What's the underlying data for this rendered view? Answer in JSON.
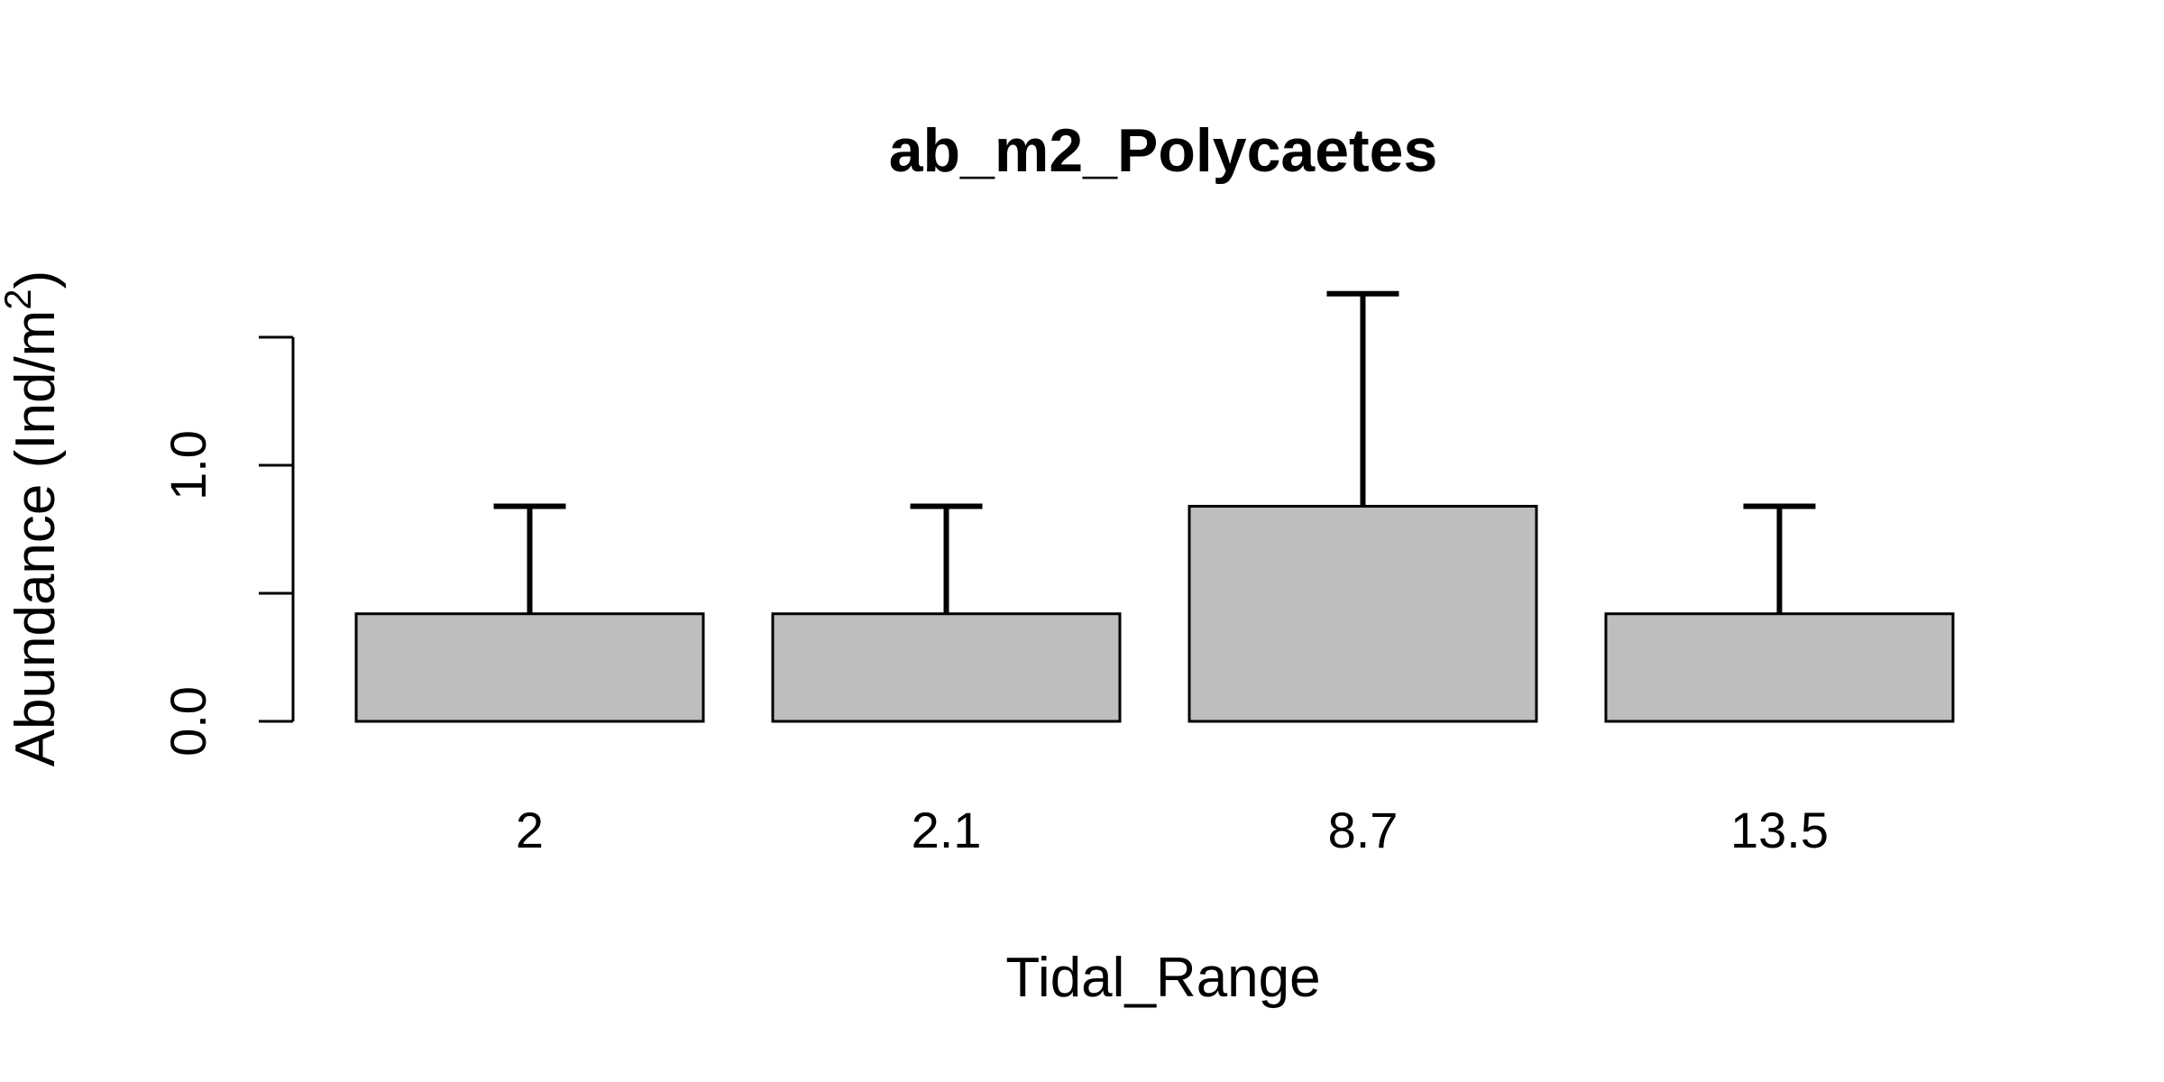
{
  "chart_data": {
    "type": "bar",
    "title": "ab_m2_Polycaetes",
    "xlabel": "Tidal_Range",
    "ylabel": "Abundance (Ind/m",
    "ylabel_superscript": "2",
    "ylabel_suffix": ")",
    "categories": [
      "2",
      "2.1",
      "8.7",
      "13.5"
    ],
    "values": [
      0.42,
      0.42,
      0.84,
      0.42
    ],
    "error_upper": [
      0.84,
      0.84,
      1.67,
      0.84
    ],
    "ylim": [
      0,
      1.5
    ],
    "yticks": [
      0,
      0.5,
      1.0,
      1.5
    ],
    "ytick_labels": [
      "0.0",
      "",
      "1.0",
      ""
    ],
    "bar_color": "#bebebe",
    "grid": false,
    "legend": "none"
  }
}
